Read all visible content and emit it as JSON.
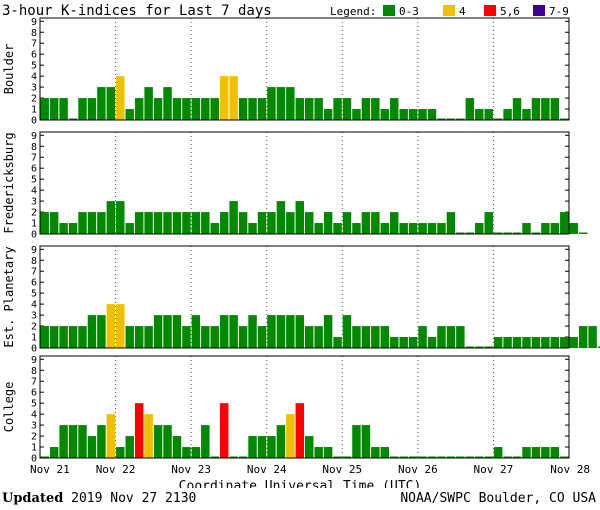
{
  "chart_data": {
    "type": "bar",
    "title": "3-hour K-indices for Last 7 days",
    "legend": {
      "label": "Legend:",
      "position": "top-right",
      "items": [
        {
          "label": "0-3",
          "color": "#008800"
        },
        {
          "label": "4",
          "color": "#f0c000"
        },
        {
          "label": "5,6",
          "color": "#ff0000"
        },
        {
          "label": "7-9",
          "color": "#400090"
        }
      ]
    },
    "xlabel": "Coordinate Universal Time (UTC)",
    "x_ticks": [
      "Nov 21",
      "Nov 22",
      "Nov 23",
      "Nov 24",
      "Nov 25",
      "Nov 26",
      "Nov 27",
      "Nov 28"
    ],
    "ylim": [
      0,
      9
    ],
    "y_ticks": [
      0,
      1,
      2,
      3,
      4,
      5,
      6,
      7,
      8,
      9
    ],
    "bins_per_day": 8,
    "panels": [
      {
        "name": "Boulder",
        "values": [
          2,
          2,
          2,
          0,
          2,
          2,
          3,
          3,
          4,
          1,
          2,
          3,
          2,
          3,
          2,
          2,
          2,
          2,
          2,
          4,
          4,
          2,
          2,
          2,
          3,
          3,
          3,
          2,
          2,
          2,
          1,
          2,
          2,
          1,
          2,
          2,
          1,
          2,
          1,
          1,
          1,
          1,
          0,
          0,
          0,
          2,
          1,
          1,
          0,
          1,
          2,
          1,
          2,
          2,
          2,
          0
        ]
      },
      {
        "name": "Fredericksburg",
        "values": [
          2,
          2,
          1,
          1,
          2,
          2,
          2,
          3,
          3,
          1,
          2,
          2,
          2,
          2,
          2,
          2,
          2,
          2,
          1,
          2,
          3,
          2,
          1,
          2,
          2,
          3,
          2,
          3,
          2,
          1,
          2,
          1,
          2,
          1,
          2,
          2,
          1,
          2,
          1,
          1,
          1,
          1,
          1,
          2,
          0,
          0,
          1,
          2,
          0,
          0,
          0,
          1,
          0,
          1,
          1,
          2,
          1,
          0
        ]
      },
      {
        "name": "Est. Planetary",
        "values": [
          2,
          2,
          2,
          2,
          2,
          3,
          3,
          4,
          4,
          2,
          2,
          2,
          3,
          3,
          3,
          2,
          3,
          2,
          2,
          3,
          3,
          2,
          3,
          2,
          3,
          3,
          3,
          3,
          2,
          2,
          3,
          1,
          3,
          2,
          2,
          2,
          2,
          1,
          1,
          1,
          2,
          1,
          2,
          2,
          2,
          0,
          0,
          0,
          1,
          1,
          1,
          1,
          1,
          1,
          1,
          1,
          1,
          2,
          2,
          0
        ]
      },
      {
        "name": "College",
        "values": [
          0,
          1,
          3,
          3,
          3,
          2,
          3,
          4,
          1,
          2,
          5,
          4,
          3,
          3,
          2,
          1,
          1,
          3,
          0,
          5,
          0,
          0,
          2,
          2,
          2,
          3,
          4,
          5,
          2,
          1,
          1,
          0,
          0,
          3,
          3,
          1,
          1,
          0,
          0,
          0,
          0,
          0,
          0,
          0,
          0,
          0,
          0,
          0,
          1,
          0,
          0,
          1,
          1,
          1,
          1,
          0
        ]
      }
    ]
  },
  "footer": {
    "updated_label": "Updated",
    "updated_value": "2019 Nov 27 2130",
    "source": "NOAA/SWPC Boulder, CO USA"
  }
}
